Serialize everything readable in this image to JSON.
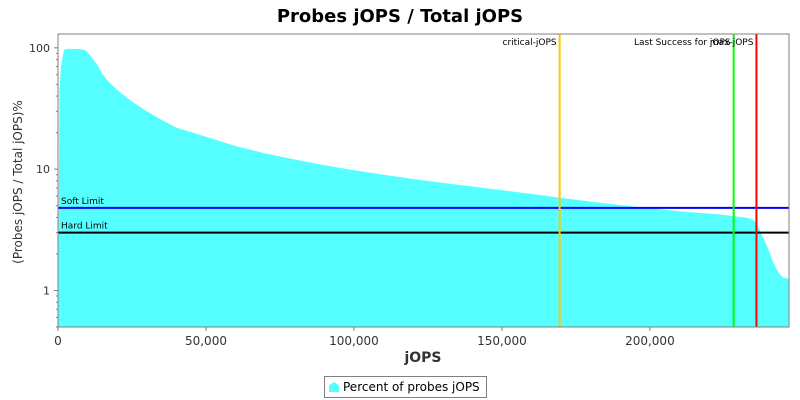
{
  "chart_data": {
    "type": "area",
    "title": "Probes jOPS / Total jOPS",
    "xlabel": "jOPS",
    "ylabel": "(Probes jOPS / Total jOPS)%",
    "y_scale": "log",
    "xlim": [
      0,
      247000
    ],
    "ylim": [
      0.5,
      130
    ],
    "x_ticks": [
      0,
      50000,
      100000,
      150000,
      200000
    ],
    "x_tick_labels": [
      "0",
      "50,000",
      "100,000",
      "150,000",
      "200,000"
    ],
    "y_ticks": [
      1,
      10,
      100
    ],
    "y_tick_labels": [
      "1",
      "10",
      "100"
    ],
    "grid": false,
    "legend_position": "bottom",
    "series": [
      {
        "name": "Percent of probes jOPS",
        "color": "#55ffff",
        "x": [
          0,
          500,
          1000,
          2000,
          3000,
          5000,
          7000,
          9000,
          10000,
          11000,
          13000,
          15000,
          17000,
          20000,
          25000,
          30000,
          35000,
          40000,
          50000,
          60000,
          70000,
          80000,
          90000,
          100000,
          110000,
          120000,
          130000,
          140000,
          150000,
          160000,
          170000,
          180000,
          190000,
          200000,
          210000,
          220000,
          225000,
          228000,
          230000,
          232000,
          234000,
          235000,
          236000,
          237000,
          238000,
          240000,
          241500,
          242500,
          244000,
          245000,
          247000
        ],
        "y": [
          0.5,
          45,
          70,
          96,
          98,
          98,
          98,
          96,
          92,
          86,
          74,
          61,
          53,
          45,
          36,
          30,
          25.5,
          22,
          18.5,
          15.5,
          13.5,
          12,
          10.8,
          9.8,
          9.0,
          8.3,
          7.7,
          7.2,
          6.7,
          6.25,
          5.8,
          5.4,
          5.05,
          4.75,
          4.5,
          4.3,
          4.2,
          4.1,
          4.05,
          4.0,
          3.9,
          3.8,
          3.6,
          3.2,
          2.8,
          2.2,
          1.75,
          1.55,
          1.35,
          1.28,
          1.25
        ]
      }
    ],
    "horizontal_lines": [
      {
        "label": "Soft Limit",
        "y": 4.8,
        "color": "#0000ff"
      },
      {
        "label": "Hard Limit",
        "y": 3.0,
        "color": "#000000"
      }
    ],
    "vertical_lines": [
      {
        "label": "critical-jOPS",
        "x": 169500,
        "color": "#ffc800"
      },
      {
        "label": "Last Success for jOPS",
        "x": 228300,
        "color": "#00ff00"
      },
      {
        "label": "max-jOPS",
        "x": 236000,
        "color": "#ff0000"
      }
    ]
  }
}
